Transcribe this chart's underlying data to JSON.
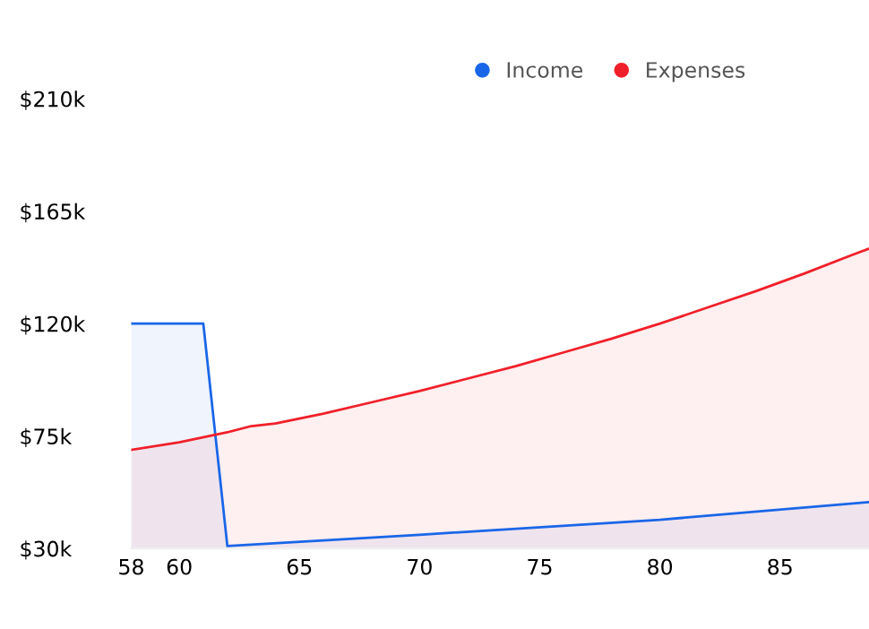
{
  "chart_data": {
    "type": "area",
    "series": [
      {
        "name": "Income",
        "color": "#1a66e8",
        "x": [
          58,
          61,
          62,
          70,
          80,
          88.7
        ],
        "values": [
          120,
          120,
          31,
          35.5,
          41.5,
          48.6
        ]
      },
      {
        "name": "Expenses",
        "color": "#f0202a",
        "x": [
          58,
          60,
          62,
          63,
          64,
          66,
          68,
          70,
          72,
          74,
          76,
          78,
          80,
          82,
          84,
          86,
          88,
          88.7
        ],
        "values": [
          69.5,
          72.5,
          76.5,
          79,
          80,
          84,
          88.5,
          93,
          98,
          103,
          108.5,
          114,
          120,
          126.5,
          133,
          140,
          147.5,
          150
        ]
      }
    ],
    "xlim": [
      58,
      88.7
    ],
    "xticks": [
      58,
      60,
      65,
      70,
      75,
      80,
      85
    ],
    "ylim": [
      30,
      210
    ],
    "yticks": [
      {
        "value": 30,
        "label": "$30k"
      },
      {
        "value": 75,
        "label": "$75k"
      },
      {
        "value": 120,
        "label": "$120k"
      },
      {
        "value": 165,
        "label": "$165k"
      },
      {
        "value": 210,
        "label": "$210k"
      }
    ],
    "grid": false,
    "legend": "top right",
    "marker": "none",
    "line_style": "solid"
  }
}
